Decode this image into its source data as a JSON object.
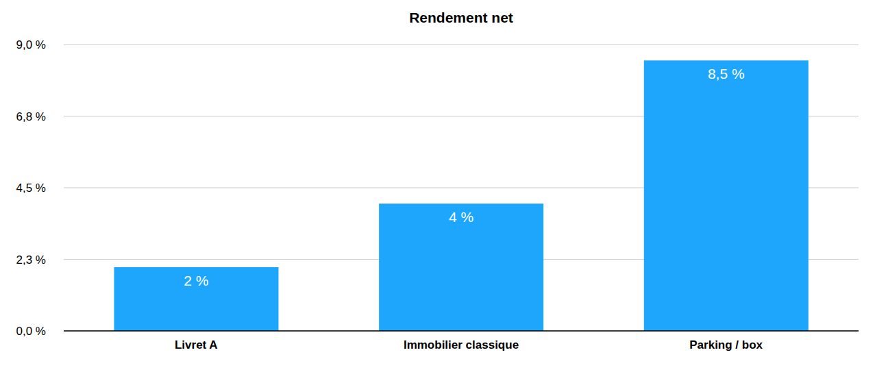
{
  "chart_data": {
    "type": "bar",
    "title": "Rendement net",
    "categories": [
      "Livret A",
      "Immobilier classique",
      "Parking / box"
    ],
    "values": [
      2,
      4,
      8.5
    ],
    "value_labels": [
      "2 %",
      "4 %",
      "8,5 %"
    ],
    "data_labels": true,
    "color": "#1ea5fc",
    "ylim": [
      0,
      9
    ],
    "yticks": [
      {
        "value": 0,
        "label": "0,0 %"
      },
      {
        "value": 2.25,
        "label": "2,3 %"
      },
      {
        "value": 4.5,
        "label": "4,5 %"
      },
      {
        "value": 6.75,
        "label": "6,8 %"
      },
      {
        "value": 9,
        "label": "9,0 %"
      }
    ],
    "grid": true
  }
}
